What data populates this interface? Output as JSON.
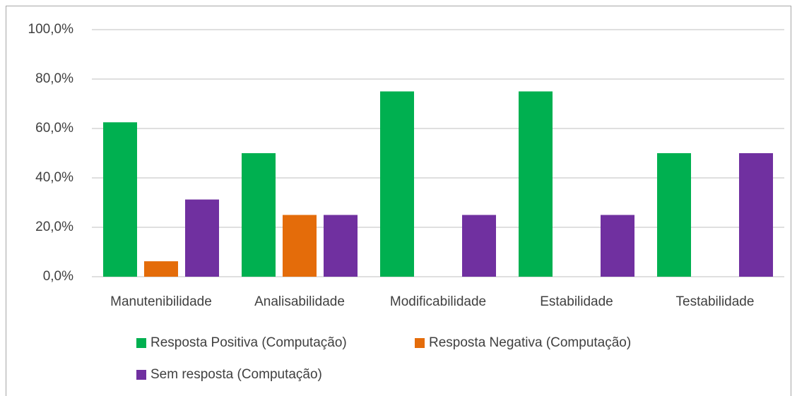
{
  "chart_data": {
    "type": "bar",
    "categories": [
      "Manutenibilidade",
      "Analisabilidade",
      "Modificabilidade",
      "Estabilidade",
      "Testabilidade"
    ],
    "series": [
      {
        "name": "Resposta Positiva (Computação)",
        "color": "#00b050",
        "values": [
          62.5,
          50,
          75,
          75,
          50
        ]
      },
      {
        "name": "Resposta Negativa (Computação)",
        "color": "#e46c0a",
        "values": [
          6.25,
          25,
          0,
          0,
          0
        ]
      },
      {
        "name": "Sem resposta (Computação)",
        "color": "#7030a0",
        "values": [
          31.25,
          25,
          25,
          25,
          50
        ]
      }
    ],
    "ylim": [
      0,
      100
    ],
    "yticks": [
      {
        "value": 0,
        "label": "0,0%"
      },
      {
        "value": 20,
        "label": "20,0%"
      },
      {
        "value": 40,
        "label": "40,0%"
      },
      {
        "value": 60,
        "label": "60,0%"
      },
      {
        "value": 80,
        "label": "80,0%"
      },
      {
        "value": 100,
        "label": "100,0%"
      }
    ],
    "grid": true,
    "legend": "bottom"
  }
}
